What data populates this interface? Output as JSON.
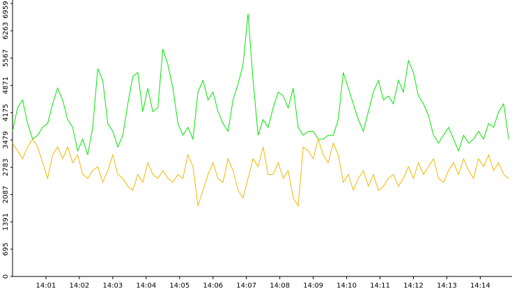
{
  "chart_data": {
    "type": "line",
    "x": [
      0,
      0.15,
      0.3,
      0.45,
      0.6,
      0.75,
      0.9,
      1.05,
      1.2,
      1.35,
      1.5,
      1.65,
      1.8,
      1.95,
      2.1,
      2.25,
      2.4,
      2.55,
      2.7,
      2.85,
      3,
      3.15,
      3.3,
      3.45,
      3.6,
      3.75,
      3.9,
      4.05,
      4.2,
      4.35,
      4.5,
      4.65,
      4.8,
      4.95,
      5.1,
      5.25,
      5.4,
      5.55,
      5.7,
      5.85,
      6,
      6.15,
      6.3,
      6.45,
      6.6,
      6.75,
      6.9,
      7.05,
      7.2,
      7.35,
      7.5,
      7.65,
      7.8,
      7.95,
      8.1,
      8.25,
      8.4,
      8.55,
      8.7,
      8.85,
      9,
      9.15,
      9.3,
      9.45,
      9.6,
      9.75,
      9.9,
      10.05,
      10.2,
      10.35,
      10.5,
      10.65,
      10.8,
      10.95,
      11.1,
      11.25,
      11.4,
      11.55,
      11.7,
      11.85,
      12,
      12.15,
      12.3,
      12.45,
      12.6,
      12.75,
      12.9,
      13.05,
      13.2,
      13.35,
      13.5,
      13.65,
      13.8,
      13.95,
      14.1,
      14.25,
      14.4,
      14.55,
      14.7,
      14.85
    ],
    "series": [
      {
        "color": "#00e600",
        "values": [
          3700,
          4300,
          4500,
          3900,
          3500,
          3600,
          3800,
          3900,
          4400,
          4800,
          4500,
          4000,
          3800,
          3200,
          3500,
          3100,
          3800,
          5300,
          5000,
          3900,
          3700,
          3300,
          3600,
          4400,
          5100,
          5200,
          4200,
          4800,
          4200,
          4300,
          5800,
          5400,
          4800,
          3900,
          3600,
          3800,
          3500,
          4700,
          5000,
          4500,
          4700,
          4200,
          3900,
          3700,
          4500,
          4900,
          5400,
          6700,
          5000,
          3600,
          4000,
          3800,
          4300,
          4700,
          4600,
          4300,
          4800,
          3800,
          3600,
          3700,
          3700,
          3500,
          3500,
          3600,
          3600,
          4000,
          5200,
          4800,
          4400,
          4000,
          3700,
          4200,
          4700,
          5000,
          4500,
          4600,
          4400,
          5000,
          4700,
          5500,
          5200,
          4600,
          4400,
          4100,
          3600,
          3400,
          3600,
          3800,
          3500,
          3200,
          3600,
          3400,
          3500,
          3700,
          3500,
          3900,
          3800,
          4200,
          4400,
          3500
        ]
      },
      {
        "color": "#f0b800",
        "values": [
          3400,
          3200,
          3000,
          3300,
          3500,
          3300,
          2900,
          2500,
          3100,
          3300,
          3000,
          3300,
          2900,
          3100,
          2600,
          2500,
          2700,
          2800,
          2400,
          2700,
          3100,
          2600,
          2500,
          2300,
          2200,
          2600,
          2400,
          2900,
          2600,
          2500,
          2700,
          2500,
          2400,
          2600,
          2500,
          3100,
          2800,
          1800,
          2200,
          2600,
          2900,
          2500,
          2400,
          3000,
          2700,
          2200,
          2000,
          2500,
          3000,
          2800,
          3300,
          2600,
          2600,
          2900,
          2500,
          2700,
          2000,
          1800,
          3300,
          3200,
          3000,
          3500,
          3100,
          2900,
          3400,
          3100,
          2400,
          2600,
          2200,
          2500,
          2700,
          2300,
          2600,
          2200,
          2300,
          2500,
          2600,
          2300,
          2500,
          2800,
          2500,
          2900,
          2600,
          2800,
          3000,
          2500,
          2400,
          2700,
          2900,
          2600,
          3000,
          2700,
          2500,
          3000,
          2800,
          3100,
          2700,
          2900,
          2600,
          2500
        ]
      }
    ],
    "xlim": [
      0,
      14.95
    ],
    "xticks": [
      {
        "value": 1,
        "label": "14:01"
      },
      {
        "value": 2,
        "label": "14:02"
      },
      {
        "value": 3,
        "label": "14:03"
      },
      {
        "value": 4,
        "label": "14:04"
      },
      {
        "value": 5,
        "label": "14:05"
      },
      {
        "value": 6,
        "label": "14:06"
      },
      {
        "value": 7,
        "label": "14:07"
      },
      {
        "value": 8,
        "label": "14:08"
      },
      {
        "value": 9,
        "label": "14:09"
      },
      {
        "value": 10,
        "label": "14:10"
      },
      {
        "value": 11,
        "label": "14:11"
      },
      {
        "value": 12,
        "label": "14:12"
      },
      {
        "value": 13,
        "label": "14:13"
      },
      {
        "value": 14,
        "label": "14:14"
      }
    ],
    "ylim": [
      0,
      6959
    ],
    "yticks": [
      0,
      695,
      1391,
      2087,
      2783,
      3479,
      4175,
      4871,
      5567,
      6263,
      6959
    ]
  }
}
